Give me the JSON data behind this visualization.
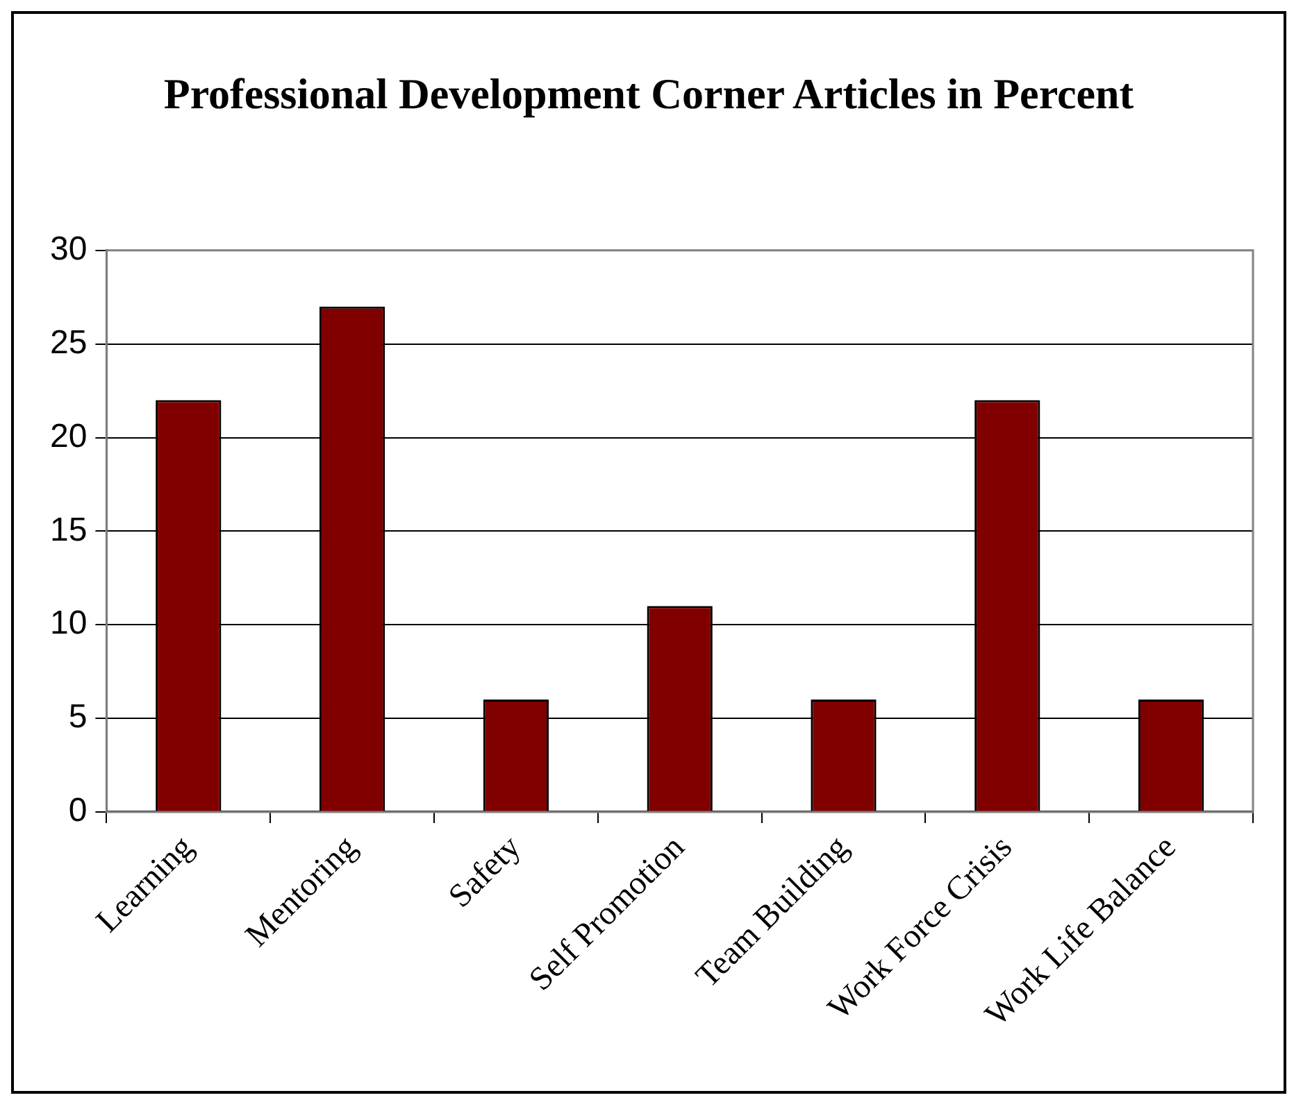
{
  "chart_data": {
    "type": "bar",
    "title": "Professional Development Corner Articles in Percent",
    "categories": [
      "Learning",
      "Mentoring",
      "Safety",
      "Self Promotion",
      "Team Building",
      "Work Force Crisis",
      "Work Life Balance"
    ],
    "values": [
      22,
      27,
      6,
      11,
      6,
      22,
      6
    ],
    "color": "#800000",
    "ylim": [
      0,
      30
    ],
    "yticks": [
      0,
      5,
      10,
      15,
      20,
      25,
      30
    ],
    "grid": "y",
    "legend": false
  }
}
